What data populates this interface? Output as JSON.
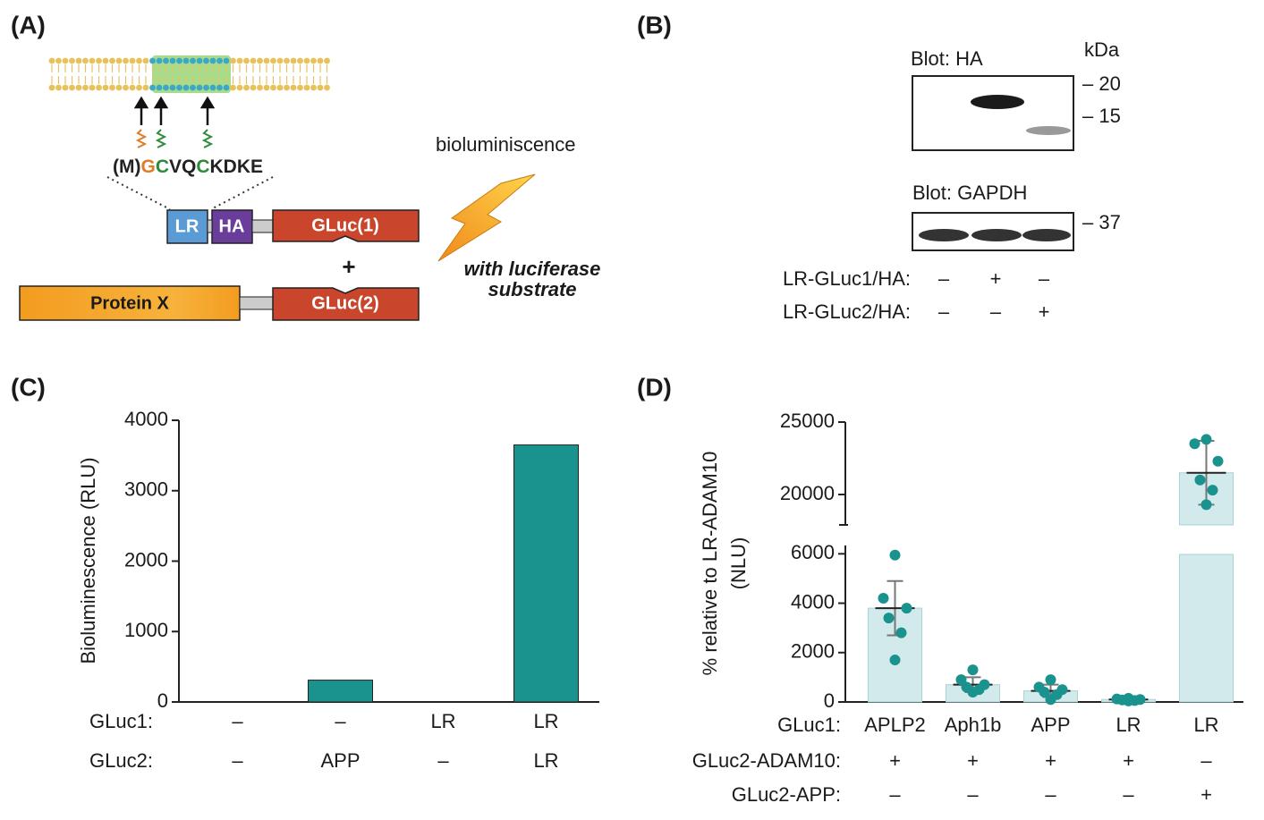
{
  "panel_a": {
    "label": "(A)",
    "sequence": [
      {
        "text": "(M)",
        "color": "#222222"
      },
      {
        "text": "G",
        "color": "#e07b26"
      },
      {
        "text": "C",
        "color": "#2e8b3a"
      },
      {
        "text": "VQ",
        "color": "#222222"
      },
      {
        "text": "C",
        "color": "#2e8b3a"
      },
      {
        "text": "KDKE",
        "color": "#222222"
      }
    ],
    "lr": "LR",
    "ha": "HA",
    "gluc1": "GLuc(1)",
    "plus": "+",
    "protein_x": "Protein X",
    "gluc2": "GLuc(2)",
    "bioluminescence": "bioluminiscence",
    "substrate_lines": [
      "with luciferase",
      "substrate"
    ]
  },
  "panel_b": {
    "label": "(B)",
    "kda": "kDa",
    "blot_ha": "Blot: HA",
    "blot_gapdh": "Blot: GAPDH",
    "markers": [
      "– 20",
      "– 15",
      "– 37"
    ],
    "rows": [
      {
        "label": "LR-GLuc1/HA:",
        "signs": [
          "–",
          "+",
          "–"
        ]
      },
      {
        "label": "LR-GLuc2/HA:",
        "signs": [
          "–",
          "–",
          "+"
        ]
      }
    ]
  },
  "chart_data": [
    {
      "type": "bar",
      "panel_label": "(C)",
      "y_label": "Bioluminescence (RLU)",
      "categories": [
        null,
        null,
        null,
        null
      ],
      "x_rows": [
        {
          "label": "GLuc1:",
          "values": [
            "–",
            "–",
            "LR",
            "LR"
          ]
        },
        {
          "label": "GLuc2:",
          "values": [
            "–",
            "APP",
            "–",
            "LR"
          ]
        }
      ],
      "values": [
        0,
        310,
        0,
        3650
      ],
      "color": "#1a938f",
      "ylim": [
        0,
        4000
      ],
      "yticks": [
        0,
        1000,
        2000,
        3000,
        4000
      ]
    },
    {
      "type": "dotbar",
      "panel_label": "(D)",
      "y_label": [
        "% relative to LR-ADAM10",
        "(NLU)"
      ],
      "category_row_label": "GLuc1:",
      "categories": [
        "APLP2",
        "Aph1b",
        "APP",
        "LR",
        "LR"
      ],
      "x_rows": [
        {
          "label": "GLuc2-ADAM10:",
          "values": [
            "+",
            "+",
            "+",
            "+",
            "–"
          ]
        },
        {
          "label": "GLuc2-APP:",
          "values": [
            "–",
            "–",
            "–",
            "–",
            "+"
          ]
        }
      ],
      "values": [
        3800,
        700,
        450,
        100,
        21500
      ],
      "errors": [
        1100,
        300,
        250,
        60,
        2200
      ],
      "points": [
        [
          5950,
          4200,
          3800,
          3400,
          2800,
          1700
        ],
        [
          1300,
          900,
          700,
          600,
          500,
          400
        ],
        [
          900,
          600,
          500,
          400,
          300,
          100
        ],
        [
          150,
          120,
          100,
          80,
          60,
          40
        ],
        [
          23800,
          23500,
          22300,
          21000,
          20300,
          19300
        ]
      ],
      "color": "#1a938f",
      "bar_color": "#d3eaec",
      "ylim": [
        0,
        25000
      ],
      "axis_break": [
        6700,
        17900
      ],
      "yticks": [
        0,
        2000,
        4000,
        6000,
        20000,
        25000
      ]
    }
  ]
}
